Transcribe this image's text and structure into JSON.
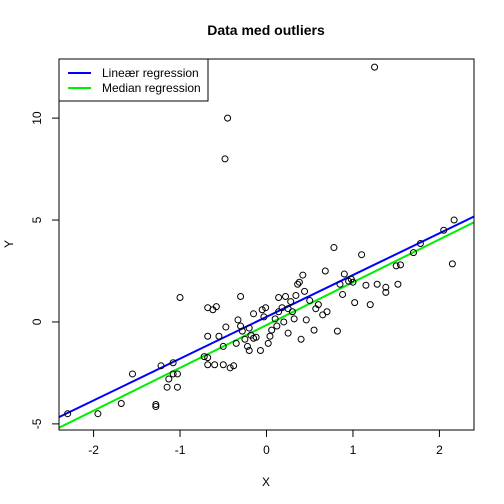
{
  "chart_data": {
    "type": "scatter",
    "title": "Data med outliers",
    "xlabel": "X",
    "ylabel": "Y",
    "xlim": [
      -2.4,
      2.4
    ],
    "ylim": [
      -5.3,
      12.9
    ],
    "x_ticks": [
      -2,
      -1,
      0,
      1,
      2
    ],
    "y_ticks": [
      -5,
      0,
      5,
      10
    ],
    "grid": false,
    "legend_position": "top-left",
    "points": [
      [
        -2.3,
        -4.5
      ],
      [
        -1.95,
        -4.5
      ],
      [
        -1.68,
        -4.0
      ],
      [
        -1.55,
        -2.55
      ],
      [
        -1.28,
        -4.05
      ],
      [
        -1.28,
        -4.15
      ],
      [
        -1.22,
        -2.15
      ],
      [
        -1.15,
        -3.2
      ],
      [
        -1.13,
        -2.8
      ],
      [
        -1.08,
        -2.55
      ],
      [
        -1.08,
        -2.0
      ],
      [
        -1.03,
        -3.2
      ],
      [
        -1.03,
        -2.55
      ],
      [
        -1.0,
        1.2
      ],
      [
        -0.72,
        -1.7
      ],
      [
        -0.68,
        -1.75
      ],
      [
        -0.68,
        -2.1
      ],
      [
        -0.68,
        -0.7
      ],
      [
        -0.68,
        0.7
      ],
      [
        -0.62,
        0.6
      ],
      [
        -0.6,
        -2.1
      ],
      [
        -0.58,
        0.75
      ],
      [
        -0.55,
        -0.7
      ],
      [
        -0.5,
        -1.2
      ],
      [
        -0.5,
        -2.1
      ],
      [
        -0.48,
        8.0
      ],
      [
        -0.47,
        -0.25
      ],
      [
        -0.45,
        10.0
      ],
      [
        -0.42,
        -2.25
      ],
      [
        -0.38,
        -2.15
      ],
      [
        -0.35,
        -1.05
      ],
      [
        -0.33,
        0.1
      ],
      [
        -0.3,
        1.25
      ],
      [
        -0.3,
        -0.2
      ],
      [
        -0.28,
        -0.45
      ],
      [
        -0.25,
        -0.85
      ],
      [
        -0.22,
        -1.2
      ],
      [
        -0.2,
        -1.4
      ],
      [
        -0.2,
        -0.3
      ],
      [
        -0.18,
        -0.65
      ],
      [
        -0.15,
        0.4
      ],
      [
        -0.15,
        -0.8
      ],
      [
        -0.12,
        -0.75
      ],
      [
        -0.07,
        -1.4
      ],
      [
        -0.05,
        0.6
      ],
      [
        -0.03,
        0.25
      ],
      [
        -0.01,
        0.7
      ],
      [
        0.02,
        -1.05
      ],
      [
        0.04,
        -0.7
      ],
      [
        0.06,
        -0.4
      ],
      [
        0.1,
        0.15
      ],
      [
        0.12,
        -0.2
      ],
      [
        0.14,
        1.2
      ],
      [
        0.14,
        0.5
      ],
      [
        0.18,
        0.7
      ],
      [
        0.2,
        0.0
      ],
      [
        0.22,
        1.25
      ],
      [
        0.25,
        -0.55
      ],
      [
        0.25,
        0.65
      ],
      [
        0.28,
        1.0
      ],
      [
        0.3,
        0.5
      ],
      [
        0.32,
        0.15
      ],
      [
        0.34,
        1.3
      ],
      [
        0.36,
        1.85
      ],
      [
        0.38,
        1.95
      ],
      [
        0.4,
        -0.85
      ],
      [
        0.42,
        2.3
      ],
      [
        0.44,
        1.5
      ],
      [
        0.46,
        0.1
      ],
      [
        0.5,
        1.05
      ],
      [
        0.55,
        -0.4
      ],
      [
        0.57,
        0.65
      ],
      [
        0.6,
        0.85
      ],
      [
        0.65,
        0.35
      ],
      [
        0.68,
        2.5
      ],
      [
        0.7,
        0.5
      ],
      [
        0.78,
        3.65
      ],
      [
        0.82,
        -0.45
      ],
      [
        0.85,
        1.85
      ],
      [
        0.88,
        1.35
      ],
      [
        0.9,
        2.35
      ],
      [
        0.95,
        2.0
      ],
      [
        0.98,
        2.1
      ],
      [
        1.0,
        1.95
      ],
      [
        1.02,
        0.95
      ],
      [
        1.1,
        3.3
      ],
      [
        1.15,
        1.8
      ],
      [
        1.2,
        0.85
      ],
      [
        1.25,
        12.5
      ],
      [
        1.28,
        1.85
      ],
      [
        1.38,
        1.7
      ],
      [
        1.38,
        1.45
      ],
      [
        1.5,
        2.75
      ],
      [
        1.52,
        1.85
      ],
      [
        1.55,
        2.8
      ],
      [
        1.7,
        3.4
      ],
      [
        1.78,
        3.85
      ],
      [
        2.05,
        4.5
      ],
      [
        2.15,
        2.85
      ],
      [
        2.17,
        5.0
      ]
    ],
    "series": [
      {
        "name": "Lineær regression",
        "color": "#0000ff",
        "intercept": 0.25,
        "slope": 2.05
      },
      {
        "name": "Median regression",
        "color": "#00ee00",
        "intercept": -0.15,
        "slope": 2.1
      }
    ],
    "point_color": "#000000"
  }
}
